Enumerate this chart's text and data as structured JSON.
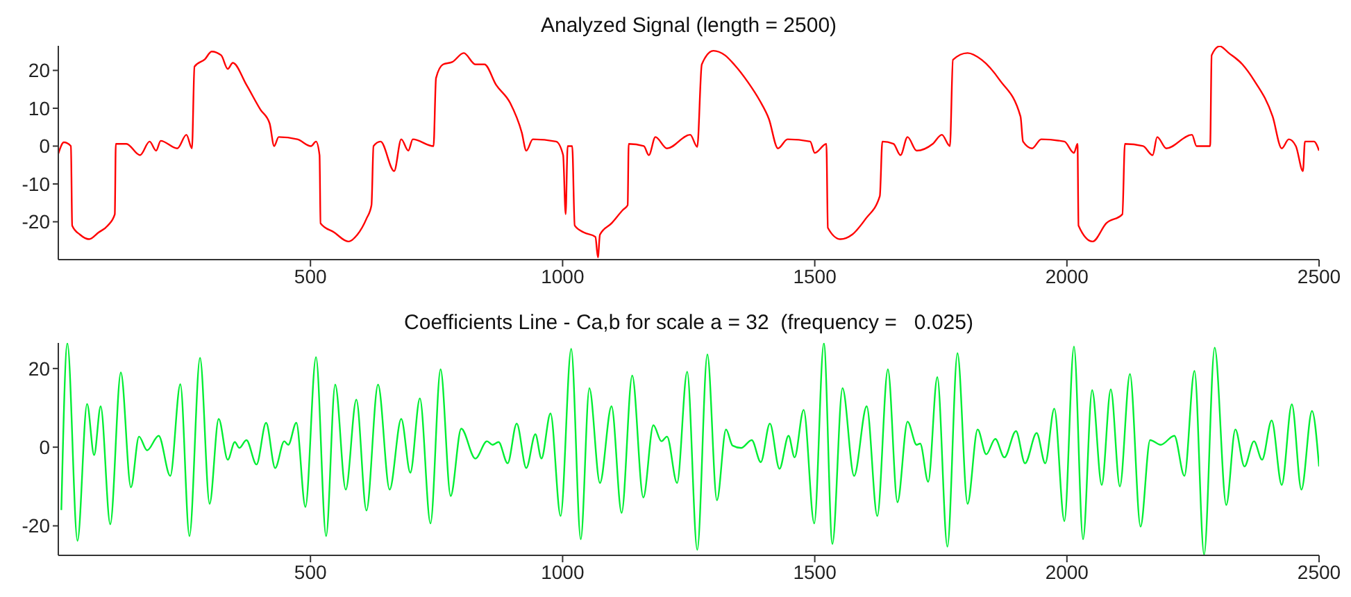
{
  "chart_data": [
    {
      "type": "line",
      "title": "Analyzed Signal (length = 2500)",
      "xlim": [
        0,
        2500
      ],
      "xticks": [
        500,
        1000,
        1500,
        2000,
        2500
      ],
      "ylim": [
        -30,
        26.5
      ],
      "yticks": [
        -20,
        -10,
        0,
        10,
        20
      ],
      "series": [
        {
          "color": "#ff0000",
          "x": [
            0,
            11,
            25,
            27.5,
            43,
            61,
            80,
            98,
            112,
            114,
            135,
            162,
            181,
            194,
            203,
            236,
            254,
            265,
            270,
            291,
            304,
            323,
            336,
            346,
            373,
            401,
            419,
            428,
            437,
            474,
            501,
            511,
            518,
            520,
            547,
            575,
            593,
            611,
            621,
            625,
            639,
            666,
            680,
            694,
            703,
            744,
            749,
            763,
            781,
            804,
            827,
            845,
            868,
            896,
            919,
            928,
            941,
            987,
            1001,
            1006,
            1010,
            1019,
            1024,
            1042,
            1065,
            1070,
            1074,
            1097,
            1120,
            1129,
            1131,
            1161,
            1171,
            1184,
            1207,
            1253,
            1267,
            1276,
            1299,
            1322,
            1340,
            1368,
            1391,
            1409,
            1427,
            1446,
            1491,
            1500,
            1523,
            1526,
            1551,
            1574,
            1601,
            1629,
            1634,
            1656,
            1670,
            1684,
            1702,
            1734,
            1752,
            1768,
            1774,
            1803,
            1831,
            1867,
            1908,
            1913,
            1931,
            1949,
            1995,
            2014,
            2021,
            2023,
            2051,
            2078,
            2110,
            2115,
            2151,
            2170,
            2179,
            2197,
            2248,
            2257,
            2284,
            2287,
            2303,
            2321,
            2348,
            2371,
            2408,
            2426,
            2440,
            2454,
            2468,
            2472,
            2490,
            2500
          ],
          "values": [
            -2,
            1,
            0,
            -21,
            -23.4,
            -24.6,
            -22.8,
            -21,
            -18,
            0.6,
            0.6,
            -2.4,
            1.2,
            -1.2,
            1.4,
            -0.6,
            3,
            -0.6,
            21,
            23,
            25,
            24,
            20.4,
            22,
            16.2,
            9.6,
            6,
            0,
            2.4,
            1.8,
            0,
            1.2,
            -2.4,
            -20.4,
            -22.8,
            -25.2,
            -23.4,
            -19.2,
            -15.6,
            0,
            1.2,
            -6.6,
            1.8,
            -1.2,
            1.8,
            0,
            18,
            21.6,
            22.2,
            24.6,
            21.6,
            21.6,
            16.2,
            11.4,
            3.6,
            -1.2,
            1.8,
            1.2,
            -2.4,
            -18,
            0,
            0,
            -21,
            -22.8,
            -24,
            -29.4,
            -23.4,
            -20.4,
            -16.8,
            -15.6,
            0.6,
            0,
            -2.4,
            2.4,
            -0.6,
            3,
            -0.2,
            21.6,
            25.2,
            24,
            21.6,
            16.8,
            12,
            7.2,
            -0.6,
            1.8,
            1.2,
            -1.8,
            0.6,
            -21.6,
            -24.6,
            -23.4,
            -19.2,
            -13.2,
            1.2,
            0.6,
            -2.4,
            2.4,
            -1.2,
            0.6,
            3,
            0,
            22.8,
            24.6,
            22.8,
            17.4,
            7.8,
            1.2,
            -0.6,
            1.8,
            1.2,
            -1.8,
            0.6,
            -21,
            -25.2,
            -20.4,
            -18,
            0.6,
            0,
            -2.4,
            2.4,
            -0.6,
            3,
            0,
            0,
            24,
            26.4,
            24.6,
            21.6,
            17.4,
            7.8,
            -0.6,
            1.8,
            0,
            -6.6,
            1.2,
            1.2,
            -1.2
          ]
        }
      ]
    },
    {
      "type": "line",
      "title": "Coefficients Line - Ca,b for scale a = 32  (frequency =   0.025)",
      "xlim": [
        0,
        2500
      ],
      "xticks": [
        500,
        1000,
        1500,
        2000,
        2500
      ],
      "ylim": [
        -27.5,
        26.5
      ],
      "yticks": [
        -20,
        0,
        20
      ],
      "series": [
        {
          "color": "#00ee33",
          "x": [
            6,
            18,
            38,
            57,
            71,
            84,
            103,
            124,
            144,
            160,
            176,
            199,
            222,
            242,
            260,
            281,
            300,
            318,
            336,
            350,
            359,
            373,
            393,
            412,
            430,
            448,
            456,
            472,
            490,
            511,
            531,
            549,
            570,
            591,
            611,
            634,
            657,
            680,
            698,
            717,
            738,
            758,
            778,
            799,
            827,
            850,
            861,
            873,
            891,
            909,
            928,
            946,
            958,
            976,
            996,
            1017,
            1036,
            1053,
            1074,
            1097,
            1117,
            1138,
            1160,
            1180,
            1196,
            1207,
            1227,
            1247,
            1267,
            1287,
            1306,
            1324,
            1337,
            1354,
            1375,
            1393,
            1411,
            1430,
            1448,
            1460,
            1478,
            1499,
            1518,
            1535,
            1555,
            1578,
            1603,
            1624,
            1645,
            1664,
            1684,
            1702,
            1709,
            1725,
            1743,
            1763,
            1783,
            1803,
            1823,
            1840,
            1858,
            1876,
            1899,
            1917,
            1940,
            1957,
            1975,
            1995,
            2014,
            2032,
            2050,
            2069,
            2087,
            2105,
            2125,
            2146,
            2165,
            2186,
            2213,
            2233,
            2253,
            2272,
            2293,
            2316,
            2334,
            2352,
            2371,
            2387,
            2406,
            2426,
            2446,
            2465,
            2486,
            2500
          ],
          "values": [
            -16,
            26.4,
            -23.8,
            11,
            -2,
            10.4,
            -19.6,
            19,
            -10.2,
            2.7,
            -0.8,
            2.9,
            -7.3,
            16,
            -22.6,
            22.7,
            -14.4,
            7.2,
            -3.2,
            1.3,
            -0.2,
            1.8,
            -4.4,
            6.2,
            -5.3,
            1.5,
            0.6,
            6.2,
            -15.2,
            22.9,
            -22.6,
            15.9,
            -10.8,
            12.1,
            -16.1,
            15.9,
            -10.8,
            7.2,
            -6.5,
            12.4,
            -19.4,
            19.8,
            -12.4,
            4.7,
            -2.9,
            1.5,
            0.6,
            1.3,
            -4.1,
            6,
            -5.3,
            3.3,
            -2.9,
            8.6,
            -17.5,
            25,
            -23.4,
            15,
            -9.1,
            10.4,
            -16.7,
            18.2,
            -12.8,
            5.6,
            1.5,
            2.7,
            -9.1,
            19.2,
            -26.1,
            23.6,
            -13.5,
            4.5,
            0.4,
            -0.2,
            1.8,
            -3.8,
            6,
            -5.5,
            2.9,
            -2.6,
            9.5,
            -19.4,
            26.4,
            -24.6,
            15,
            -7.3,
            10.4,
            -17.5,
            19.8,
            -14,
            6.5,
            0.6,
            0.9,
            -8.8,
            17.8,
            -25.3,
            23.9,
            -14.4,
            4.5,
            -1.8,
            2.1,
            -2.6,
            4.1,
            -4.1,
            3.6,
            -4.1,
            9.8,
            -18.8,
            25.6,
            -23.4,
            14.5,
            -9.6,
            14.7,
            -10,
            18.6,
            -20.2,
            1.8,
            0.6,
            2.9,
            -7.3,
            19.4,
            -27.3,
            25.3,
            -14.7,
            4.5,
            -4.9,
            1.5,
            -3.2,
            6.8,
            -9.6,
            10.9,
            -10.8,
            9.2,
            -4.9
          ]
        }
      ]
    }
  ]
}
